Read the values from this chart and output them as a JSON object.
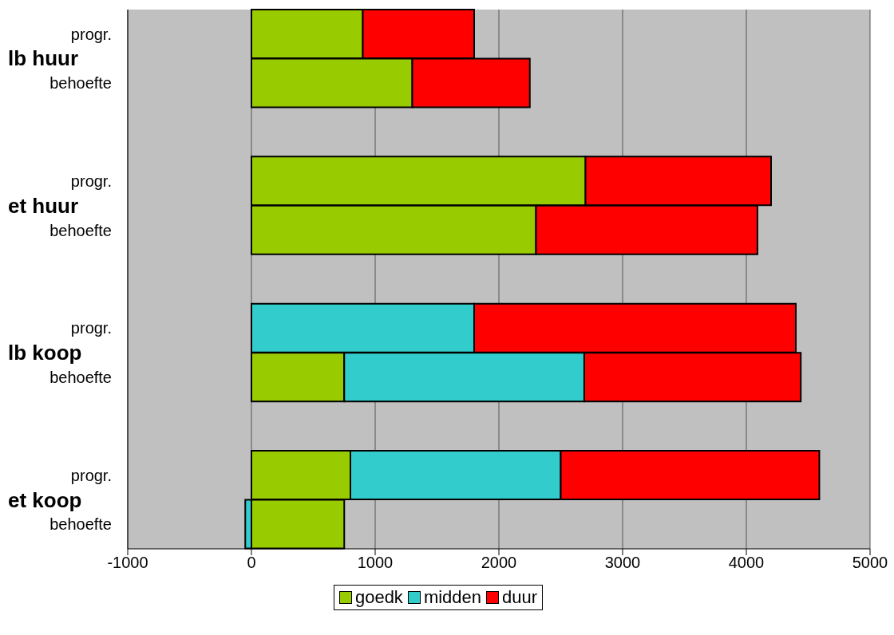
{
  "chart_data": {
    "type": "bar",
    "orientation": "horizontal",
    "stacked": true,
    "categories": [
      "progr.",
      "behoefte",
      null,
      "progr.",
      "behoefte",
      null,
      "progr.",
      "behoefte",
      null,
      "progr.",
      "behoefte"
    ],
    "annotations": [
      "lb huur",
      "et huur",
      "lb koop",
      "et koop"
    ],
    "series": [
      {
        "name": "goedk",
        "color": "#99cc00",
        "values": [
          900,
          1300,
          null,
          2700,
          2300,
          null,
          null,
          750,
          null,
          800,
          750
        ]
      },
      {
        "name": "midden",
        "color": "#33cccc",
        "values": [
          null,
          null,
          null,
          null,
          null,
          null,
          1800,
          1940,
          null,
          1700,
          -50
        ]
      },
      {
        "name": "duur",
        "color": "#ff0000",
        "values": [
          900,
          950,
          null,
          1500,
          1790,
          null,
          2600,
          1750,
          null,
          2090,
          null
        ]
      }
    ],
    "xlim": [
      -1000,
      5000
    ],
    "xticks": [
      -1000,
      0,
      1000,
      2000,
      3000,
      4000,
      5000
    ],
    "grid": "x",
    "legend": "bottom"
  }
}
